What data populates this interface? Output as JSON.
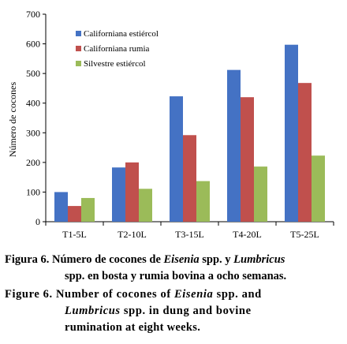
{
  "chart_data": {
    "type": "bar",
    "ylabel": "Número de cocones",
    "xlabel": "",
    "ylim": [
      0,
      700
    ],
    "yticks": [
      0,
      100,
      200,
      300,
      400,
      500,
      600,
      700
    ],
    "grid": false,
    "legend_position": "top-left",
    "categories": [
      "T1-5L",
      "T2-10L",
      "T3-15L",
      "T4-20L",
      "T5-25L"
    ],
    "series": [
      {
        "name": "Californiana estiércol",
        "color": "#4472C4",
        "values": [
          100,
          183,
          423,
          512,
          597
        ]
      },
      {
        "name": "Californiana rumia",
        "color": "#C0504D",
        "values": [
          53,
          200,
          292,
          420,
          468
        ]
      },
      {
        "name": "Silvestre estiércol",
        "color": "#9BBB59",
        "values": [
          80,
          111,
          137,
          186,
          223
        ]
      }
    ]
  },
  "caption": {
    "es": {
      "label": "Figura 6.",
      "text_1": "Número de cocones de",
      "italic_1": "Eisenia",
      "text_2": "spp. y",
      "italic_2": "Lumbricus",
      "text_3": "spp. en bosta y rumia bovina a ocho semanas."
    },
    "en": {
      "label": "Figure 6.",
      "text_1": "Number of cocones of",
      "italic_1": "Eisenia",
      "text_2": "spp. and",
      "italic_2": "Lumbricus",
      "text_3": "spp. in dung and bovine",
      "text_4": "rumination at eight weeks."
    }
  }
}
